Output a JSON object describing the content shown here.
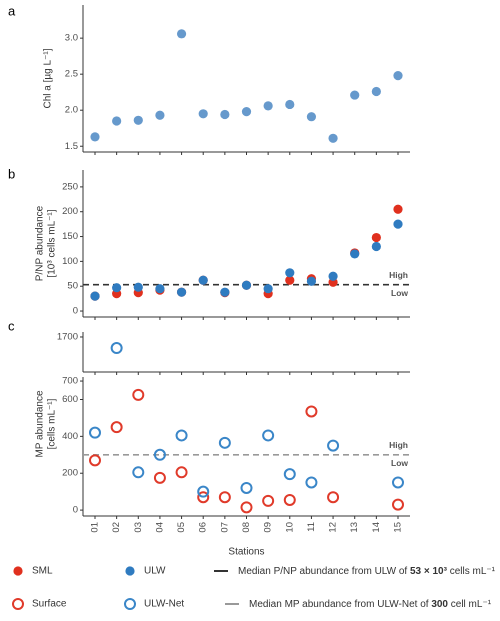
{
  "chart_data": [
    {
      "type": "scatter",
      "panel": "a",
      "ylabel": [
        "Chl a [µg L⁻¹]"
      ],
      "values": [
        1.63,
        1.85,
        1.86,
        1.93,
        3.06,
        1.95,
        1.94,
        1.98,
        2.06,
        2.08,
        1.91,
        1.61,
        2.21,
        2.26,
        2.48
      ],
      "color": "#6699cc",
      "marker": "filled",
      "ylim": [
        1.42,
        3.46
      ],
      "yticks": [
        1.5,
        {
          "value": 2.0,
          "label": "2.0"
        },
        2.5,
        {
          "value": 3.0,
          "label": "3.0"
        }
      ]
    },
    {
      "type": "scatter",
      "panel": "b",
      "ylabel": [
        "P/NP abundance",
        "[10³ cells mL⁻¹]"
      ],
      "series": [
        {
          "name": "SML",
          "color": "#e0301e",
          "marker": "filled",
          "values": [
            30,
            35,
            37,
            42,
            38,
            62,
            37,
            52,
            35,
            62,
            65,
            58,
            117,
            148,
            205
          ]
        },
        {
          "name": "ULW",
          "color": "#2f7bc0",
          "marker": "filled",
          "values": [
            30,
            47,
            48,
            45,
            38,
            62,
            38,
            52,
            45,
            77,
            60,
            70,
            115,
            130,
            175
          ]
        }
      ],
      "ylim": [
        -12,
        284
      ],
      "yticks": [
        0,
        50,
        100,
        150,
        200,
        250
      ],
      "hline": {
        "value": 53,
        "color": "#333333",
        "labels": [
          "High",
          "Low"
        ],
        "legend_text": [
          "Median P/NP abundance from ULW of ",
          "53 × 10³",
          " cells mL⁻¹"
        ]
      }
    },
    {
      "type": "scatter",
      "panel": "c",
      "ylabel": [
        "MP abundance",
        "[cells mL⁻¹]"
      ],
      "categories": [
        "01",
        "02",
        "03",
        "04",
        "05",
        "06",
        "07",
        "08",
        "09",
        "10",
        "11",
        "12",
        "13",
        "14",
        "15"
      ],
      "xlabel": "Stations",
      "series": [
        {
          "name": "Surface",
          "color": "#e03a2a",
          "marker": "open",
          "values": [
            270,
            450,
            625,
            175,
            205,
            70,
            70,
            15,
            50,
            55,
            535,
            70,
            null,
            null,
            30
          ]
        },
        {
          "name": "ULW-Net",
          "color": "#3a86c8",
          "marker": "open",
          "values": [
            420,
            1640,
            205,
            300,
            405,
            100,
            365,
            120,
            405,
            195,
            150,
            350,
            null,
            null,
            150
          ]
        }
      ],
      "ylim": [
        -32,
        722
      ],
      "yticks": [
        0,
        200,
        400,
        600,
        700
      ],
      "break": {
        "ylim": [
          1510,
          1727
        ],
        "yticks": [
          1700
        ]
      },
      "hline": {
        "value": 300,
        "color": "#999999",
        "labels": [
          "High",
          "Low"
        ],
        "legend_text": [
          "Median MP abundance from ULW-Net of ",
          "300",
          " cell mL⁻¹"
        ]
      }
    }
  ]
}
